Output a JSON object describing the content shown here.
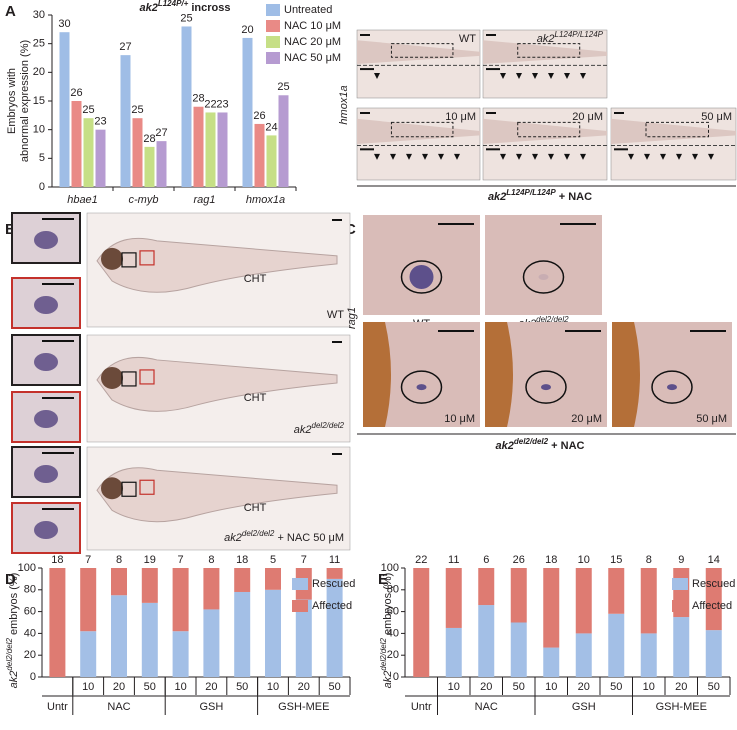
{
  "chart_data": [
    {
      "type": "bar",
      "panel": "A",
      "title": {
        "base": "ak2",
        "sup": "L124P/+",
        "suffix": " incross"
      },
      "y_label": [
        "Embryos with",
        "abnormal expression (%)"
      ],
      "categories": [
        "hbae1",
        "c-myb",
        "rag1",
        "hmox1a"
      ],
      "series": [
        {
          "name": "Untreated",
          "color": "#9fbde6",
          "values": [
            27,
            23,
            28,
            26
          ],
          "n": [
            30,
            27,
            25,
            20
          ]
        },
        {
          "name": "NAC 10 μM",
          "color": "#e98a86",
          "values": [
            15,
            12,
            14,
            11
          ],
          "n": [
            26,
            25,
            28,
            26
          ]
        },
        {
          "name": "NAC 20 μM",
          "color": "#c6df86",
          "values": [
            12,
            7,
            13,
            9
          ],
          "n": [
            25,
            28,
            22,
            24
          ]
        },
        {
          "name": "NAC 50 μM",
          "color": "#b69bd1",
          "values": [
            10,
            8,
            13,
            16
          ],
          "n": [
            23,
            27,
            23,
            25
          ]
        }
      ],
      "ylim": [
        0,
        30
      ],
      "yticks": [
        0,
        5,
        10,
        15,
        20,
        25,
        30
      ]
    },
    {
      "type": "stacked_bar",
      "panel": "D",
      "y_label": {
        "base": "ak2",
        "sup": "del2/del2",
        "suffix": " embryos (%)"
      },
      "categories": [
        null,
        "10",
        "20",
        "50",
        "10",
        "20",
        "50",
        "10",
        "20",
        "50"
      ],
      "groups": [
        "Untr",
        "NAC",
        "GSH",
        "GSH-MEE"
      ],
      "n": [
        18,
        7,
        8,
        19,
        7,
        8,
        18,
        5,
        7,
        11
      ],
      "series": [
        {
          "name": "Rescued",
          "color": "#a3bfe6",
          "values": [
            0,
            42,
            75,
            68,
            42,
            62,
            78,
            80,
            71,
            90
          ]
        },
        {
          "name": "Affected",
          "color": "#de7b72",
          "values": [
            100,
            58,
            25,
            32,
            58,
            38,
            22,
            20,
            29,
            10
          ]
        }
      ],
      "ylim": [
        0,
        100
      ],
      "yticks": [
        0,
        20,
        40,
        60,
        80,
        100
      ]
    },
    {
      "type": "stacked_bar",
      "panel": "E",
      "y_label": {
        "base": "ak2",
        "sup": "del2/del2",
        "suffix": " embryos (%)"
      },
      "categories": [
        null,
        "10",
        "20",
        "50",
        "10",
        "20",
        "50",
        "10",
        "20",
        "50"
      ],
      "groups": [
        "Untr",
        "NAC",
        "GSH",
        "GSH-MEE"
      ],
      "n": [
        22,
        11,
        6,
        26,
        18,
        10,
        15,
        8,
        9,
        14
      ],
      "series": [
        {
          "name": "Rescued",
          "color": "#a3bfe6",
          "values": [
            0,
            45,
            66,
            50,
            27,
            40,
            58,
            40,
            55,
            43
          ]
        },
        {
          "name": "Affected",
          "color": "#de7b72",
          "values": [
            100,
            55,
            34,
            50,
            73,
            60,
            42,
            60,
            45,
            57
          ]
        }
      ],
      "ylim": [
        0,
        100
      ],
      "yticks": [
        0,
        20,
        40,
        60,
        80,
        100
      ]
    }
  ],
  "panels": {
    "A": {
      "stain": "hmox1a",
      "images": [
        "WT",
        {
          "base": "ak2",
          "sup": "L124P/L124P"
        },
        "10 μM",
        "20 μM",
        "50 μM"
      ],
      "caption": {
        "base": "ak2",
        "sup": "L124P/L124P",
        "suffix": " + NAC"
      }
    },
    "B": {
      "letter": "B",
      "region": [
        "CHT",
        "CHT",
        "CHT"
      ],
      "images": [
        "WT",
        {
          "base": "ak2",
          "sup": "del2/del2"
        },
        {
          "base": "ak2",
          "sup": "del2/del2",
          "suffix": " + NAC 50 μM"
        }
      ]
    },
    "C": {
      "letter": "C",
      "stain": "rag1",
      "images": [
        "WT",
        {
          "base": "ak2",
          "sup": "del2/del2"
        },
        "10 μM",
        "20 μM",
        "50 μM"
      ],
      "caption": {
        "base": "ak2",
        "sup": "del2/del2",
        "suffix": " + NAC"
      }
    }
  }
}
